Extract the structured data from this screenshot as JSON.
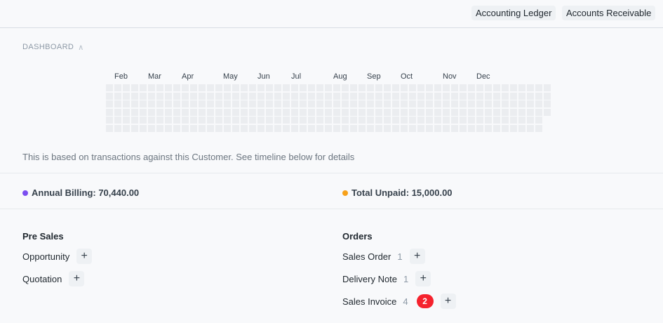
{
  "header": {
    "buttons": [
      "Accounting Ledger",
      "Accounts Receivable"
    ]
  },
  "dashboard": {
    "title": "DASHBOARD",
    "months": [
      "Feb",
      "Mar",
      "Apr",
      "May",
      "Jun",
      "Jul",
      "Aug",
      "Sep",
      "Oct",
      "Nov",
      "Dec"
    ],
    "note": "This is based on transactions against this Customer. See timeline below for details"
  },
  "stats": {
    "annual_billing": "Annual Billing: 70,440.00",
    "annual_billing_color": "#7b4ef0",
    "total_unpaid": "Total Unpaid: 15,000.00",
    "total_unpaid_color": "#f7a11a"
  },
  "pre_sales": {
    "title": "Pre Sales",
    "items": [
      {
        "label": "Opportunity"
      },
      {
        "label": "Quotation"
      }
    ]
  },
  "orders": {
    "title": "Orders",
    "items": [
      {
        "label": "Sales Order",
        "count": "1"
      },
      {
        "label": "Delivery Note",
        "count": "1"
      },
      {
        "label": "Sales Invoice",
        "count": "4",
        "badge": "2"
      }
    ]
  }
}
